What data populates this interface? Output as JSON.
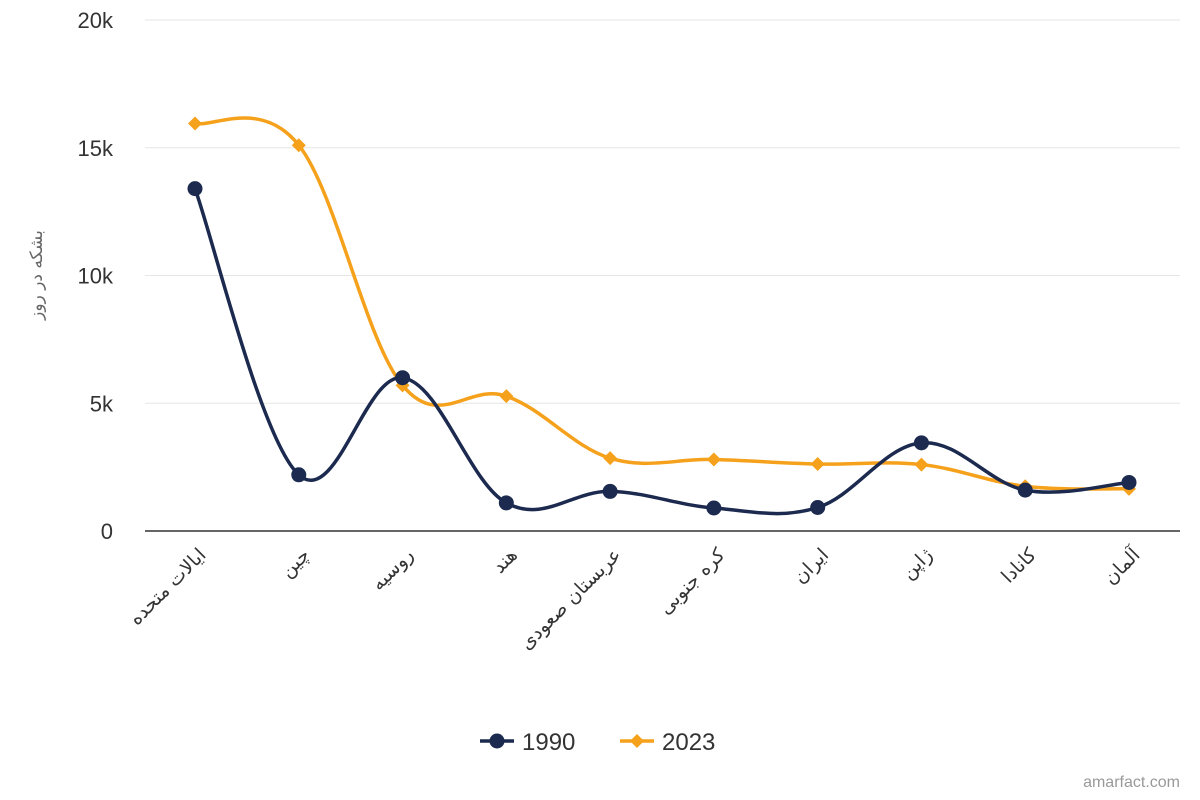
{
  "chart_data": {
    "type": "line",
    "ylabel": "بشکه در روز",
    "ylim": [
      0,
      20000
    ],
    "yticks": [
      0,
      5000,
      10000,
      15000,
      20000
    ],
    "ytick_labels": [
      "0",
      "5k",
      "10k",
      "15k",
      "20k"
    ],
    "categories": [
      "ایالات متحده",
      "چین",
      "روسیه",
      "هند",
      "عربستان صعودی",
      "کره جنوبی",
      "ایران",
      "ژاپن",
      "کانادا",
      "آلمان"
    ],
    "series": [
      {
        "name": "1990",
        "color": "#1b2a4e",
        "marker": "circle",
        "values": [
          13400,
          2200,
          6000,
          1100,
          1550,
          900,
          920,
          3450,
          1600,
          1900
        ]
      },
      {
        "name": "2023",
        "color": "#f5a11c",
        "marker": "diamond",
        "values": [
          15950,
          15100,
          5700,
          5280,
          2850,
          2800,
          2620,
          2600,
          1750,
          1650
        ]
      }
    ],
    "grid": true,
    "legend_position": "bottom-center"
  },
  "credit": "amarfact.com"
}
